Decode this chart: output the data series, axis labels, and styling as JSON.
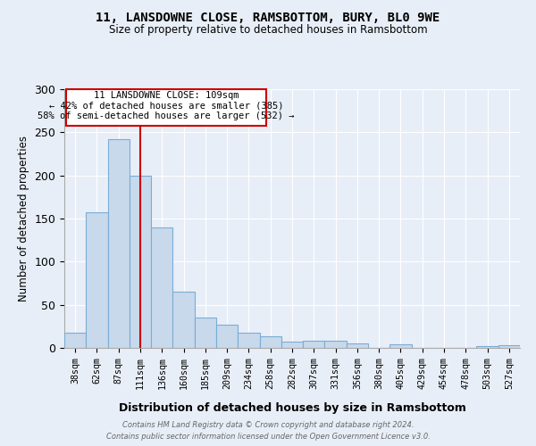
{
  "title": "11, LANSDOWNE CLOSE, RAMSBOTTOM, BURY, BL0 9WE",
  "subtitle": "Size of property relative to detached houses in Ramsbottom",
  "xlabel": "Distribution of detached houses by size in Ramsbottom",
  "ylabel": "Number of detached properties",
  "footer_line1": "Contains HM Land Registry data © Crown copyright and database right 2024.",
  "footer_line2": "Contains public sector information licensed under the Open Government Licence v3.0.",
  "annotation_line1": "11 LANSDOWNE CLOSE: 109sqm",
  "annotation_line2": "← 42% of detached houses are smaller (385)",
  "annotation_line3": "58% of semi-detached houses are larger (532) →",
  "bar_edge_color": "#7aadd4",
  "bar_face_color": "#c8d9ec",
  "vline_color": "#cc0000",
  "bg_color": "#e8eef7",
  "grid_color": "#ffffff",
  "categories": [
    "38sqm",
    "62sqm",
    "87sqm",
    "111sqm",
    "136sqm",
    "160sqm",
    "185sqm",
    "209sqm",
    "234sqm",
    "258sqm",
    "282sqm",
    "307sqm",
    "331sqm",
    "356sqm",
    "380sqm",
    "405sqm",
    "429sqm",
    "454sqm",
    "478sqm",
    "503sqm",
    "527sqm"
  ],
  "values": [
    18,
    157,
    242,
    200,
    140,
    65,
    35,
    27,
    18,
    13,
    7,
    8,
    8,
    5,
    0,
    4,
    0,
    0,
    0,
    2,
    3
  ],
  "ylim": [
    0,
    300
  ],
  "yticks": [
    0,
    50,
    100,
    150,
    200,
    250,
    300
  ],
  "vline_x_index": 3
}
